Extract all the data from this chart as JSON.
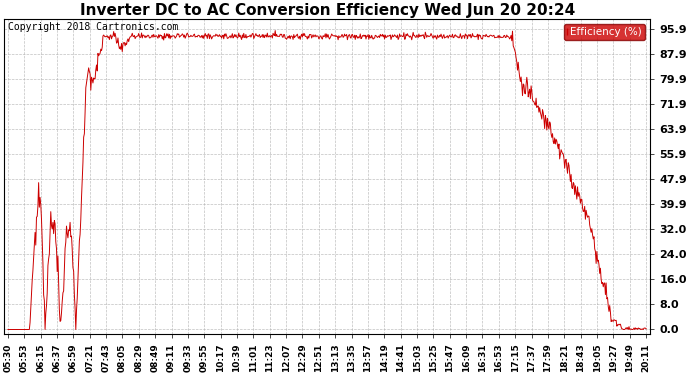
{
  "title": "Inverter DC to AC Conversion Efficiency Wed Jun 20 20:24",
  "copyright": "Copyright 2018 Cartronics.com",
  "legend_label": "Efficiency (%)",
  "legend_bg": "#cc0000",
  "legend_fg": "#ffffff",
  "line_color": "#cc0000",
  "background_color": "#ffffff",
  "grid_color": "#b0b0b0",
  "yticks": [
    0.0,
    8.0,
    16.0,
    24.0,
    32.0,
    39.9,
    47.9,
    55.9,
    63.9,
    71.9,
    79.9,
    87.9,
    95.9
  ],
  "ylim": [
    -1.5,
    99
  ],
  "x_labels": [
    "05:30",
    "05:53",
    "06:15",
    "06:37",
    "06:59",
    "07:21",
    "07:43",
    "08:05",
    "08:29",
    "08:49",
    "09:11",
    "09:33",
    "09:55",
    "10:17",
    "10:39",
    "11:01",
    "11:23",
    "12:07",
    "12:29",
    "12:51",
    "13:13",
    "13:35",
    "13:57",
    "14:19",
    "14:41",
    "15:03",
    "15:25",
    "15:47",
    "16:09",
    "16:31",
    "16:53",
    "17:15",
    "17:37",
    "17:59",
    "18:21",
    "18:43",
    "19:05",
    "19:27",
    "19:49",
    "20:11"
  ],
  "title_fontsize": 11,
  "copyright_fontsize": 7,
  "tick_fontsize": 6.5,
  "ytick_fontsize": 8
}
